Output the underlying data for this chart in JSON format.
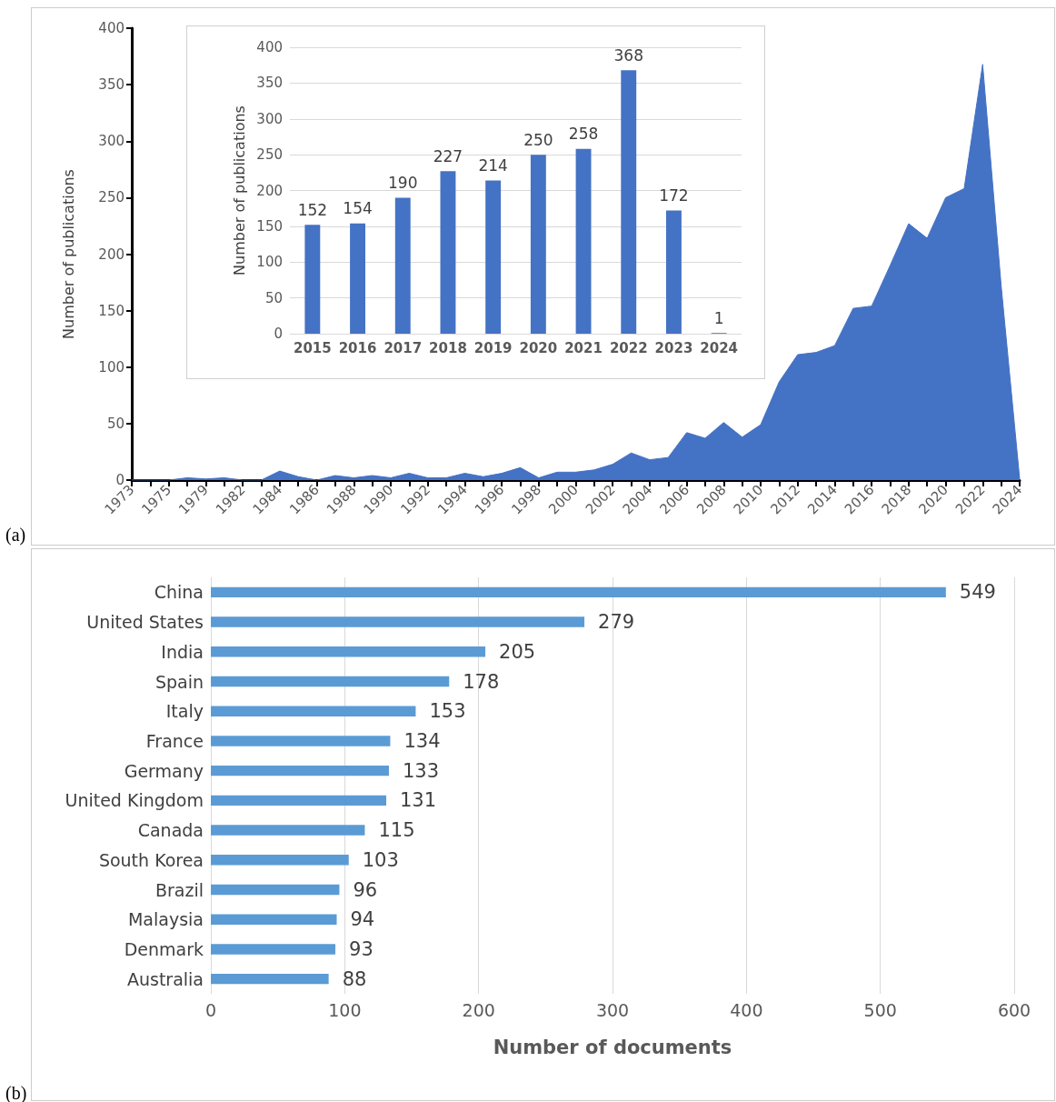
{
  "chart_data": [
    {
      "type": "area",
      "ylabel": "Number of publications",
      "annotations": [
        "(a)"
      ],
      "color": "#4472c4",
      "categories": [
        "1973",
        null,
        "1975",
        null,
        "1979",
        null,
        "1982",
        null,
        "1984",
        null,
        "1986",
        null,
        "1988",
        null,
        "1990",
        null,
        "1992",
        null,
        "1994",
        null,
        "1996",
        null,
        "1998",
        null,
        "2000",
        null,
        "2002",
        null,
        "2004",
        null,
        "2006",
        null,
        "2008",
        null,
        "2010",
        null,
        "2012",
        null,
        "2014",
        null,
        "2016",
        null,
        "2018",
        null,
        "2020",
        null,
        "2022",
        null,
        "2024"
      ],
      "values": [
        0,
        0,
        0,
        2,
        1,
        2,
        0,
        0,
        8,
        3,
        0,
        4,
        2,
        4,
        2,
        6,
        2,
        2,
        6,
        3,
        6,
        11,
        2,
        7,
        7,
        9,
        14,
        24,
        18,
        20,
        42,
        37,
        51,
        38,
        49,
        87,
        111,
        113,
        119,
        152,
        154,
        190,
        227,
        214,
        250,
        258,
        368,
        172,
        1
      ],
      "ylim": [
        0,
        400
      ],
      "yticks": [
        0,
        50,
        100,
        150,
        200,
        250,
        300,
        350,
        400
      ]
    },
    {
      "type": "bar",
      "ylabel": "Number of publications",
      "color": "#4472c4",
      "categories": [
        "2015",
        "2016",
        "2017",
        "2018",
        "2019",
        "2020",
        "2021",
        "2022",
        "2023",
        "2024"
      ],
      "values": [
        152,
        154,
        190,
        227,
        214,
        250,
        258,
        368,
        172,
        1
      ],
      "data_labels": true,
      "grid": "y",
      "ylim": [
        0,
        400
      ],
      "yticks": [
        0,
        50,
        100,
        150,
        200,
        250,
        300,
        350,
        400
      ]
    },
    {
      "type": "bar",
      "orientation": "horizontal",
      "xlabel": "Number of documents",
      "annotations": [
        "(b)"
      ],
      "color": "#5b9bd5",
      "categories": [
        "China",
        "United States",
        "India",
        "Spain",
        "Italy",
        "France",
        "Germany",
        "United Kingdom",
        "Canada",
        "South Korea",
        "Brazil",
        "Malaysia",
        "Denmark",
        "Australia"
      ],
      "values": [
        549,
        279,
        205,
        178,
        153,
        134,
        133,
        131,
        115,
        103,
        96,
        94,
        93,
        88
      ],
      "data_labels": true,
      "grid": "x",
      "xlim": [
        0,
        600
      ],
      "xticks": [
        0,
        100,
        200,
        300,
        400,
        500,
        600
      ]
    }
  ]
}
